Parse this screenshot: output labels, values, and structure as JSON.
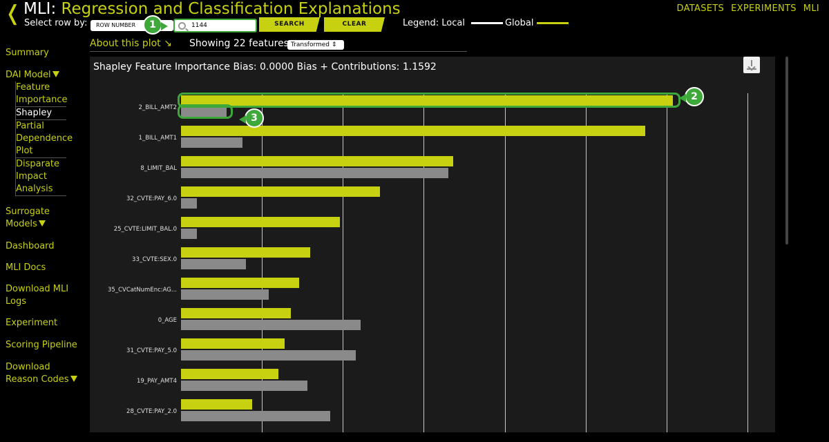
{
  "header": {
    "back_icon": "chevron-left-icon",
    "title_prefix": "MLI: ",
    "title_rest": "Regression and Classification Explanations",
    "nav": [
      "DATASETS",
      "EXPERIMENTS",
      "MLI"
    ]
  },
  "controls": {
    "select_row_label": "Select row by:",
    "row_select_value": "ROW NUMBER",
    "search_value": "1144",
    "search_button": "SEARCH",
    "clear_button": "CLEAR",
    "legend_label": "Legend: Local",
    "legend_global": "Global"
  },
  "annotations": [
    "1",
    "2",
    "3"
  ],
  "sidebar": {
    "items": [
      {
        "label": "Summary"
      },
      {
        "label": "DAI Model",
        "expanded": true
      },
      {
        "label": "Surrogate Models",
        "expanded": true
      },
      {
        "label": "Dashboard"
      },
      {
        "label": "MLI Docs"
      },
      {
        "label": "Download MLI Logs"
      },
      {
        "label": "Experiment"
      },
      {
        "label": "Scoring Pipeline"
      },
      {
        "label": "Download Reason Codes",
        "expanded": true
      }
    ],
    "dai_sub": [
      "Feature Importance",
      "Shapley",
      "Partial Dependence Plot",
      "Disparate Impact Analysis"
    ],
    "active_sub": "Shapley"
  },
  "subheader": {
    "about": "About this plot",
    "about_icon": "arrow-down-right-icon",
    "showing": "Showing 22 features:",
    "transform_value": "Transformed"
  },
  "panel": {
    "title": "Shapley Feature Importance Bias: 0.0000    Bias + Contributions: 1.1592",
    "download_icon": "download-icon"
  },
  "chart_data": {
    "type": "bar",
    "orientation": "horizontal",
    "categories": [
      "2_BILL_AMT2",
      "1_BILL_AMT1",
      "8_LIMIT_BAL",
      "32_CVTE:PAY_6.0",
      "25_CVTE:LIMIT_BAL.0",
      "33_CVTE:SEX.0",
      "35_CVCatNumEnc:AG...",
      "0_AGE",
      "31_CVTE:PAY_5.0",
      "19_PAY_AMT4",
      "28_CVTE:PAY_2.0"
    ],
    "series": [
      {
        "name": "Global",
        "color": "#c7d10f",
        "values": [
          0.304,
          0.287,
          0.168,
          0.123,
          0.098,
          0.08,
          0.073,
          0.068,
          0.064,
          0.06,
          0.044
        ]
      },
      {
        "name": "Local",
        "color": "#8a8a8a",
        "values": [
          0.028,
          0.038,
          0.165,
          0.01,
          0.01,
          0.04,
          0.054,
          0.111,
          0.108,
          0.078,
          0.092
        ]
      }
    ],
    "xlim": [
      0,
      0.35
    ],
    "grid": true
  }
}
